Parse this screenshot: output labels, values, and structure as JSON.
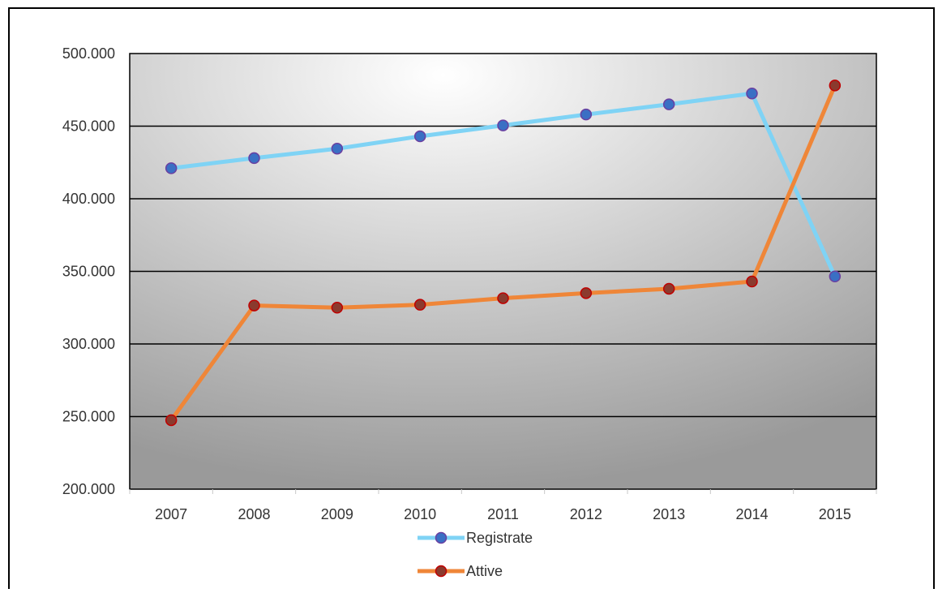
{
  "chart_data": {
    "type": "line",
    "categories": [
      "2007",
      "2008",
      "2009",
      "2010",
      "2011",
      "2012",
      "2013",
      "2014",
      "2015"
    ],
    "ylim": [
      200000,
      500000
    ],
    "y_ticks": [
      200000,
      250000,
      300000,
      350000,
      400000,
      450000,
      500000
    ],
    "y_tick_labels": [
      "200.000",
      "250.000",
      "300.000",
      "350.000",
      "400.000",
      "450.000",
      "500.000"
    ],
    "grid": true,
    "legend_position": "bottom",
    "series": [
      {
        "name": "Registrate",
        "values": [
          421000,
          428000,
          434500,
          443000,
          450500,
          458000,
          465000,
          472500,
          346500
        ],
        "line_color": "#7fd3f5",
        "marker_fill": "#3a6fc4",
        "marker_edge": "#6a3fa0"
      },
      {
        "name": "Attive",
        "values": [
          247500,
          326500,
          325000,
          327000,
          331500,
          335000,
          338000,
          343000,
          478000
        ],
        "line_color": "#ef8638",
        "marker_fill": "#8b3a2e",
        "marker_edge": "#c00000"
      }
    ]
  },
  "plot_background": {
    "light": "#ffffff",
    "dark": "#9a9a9a"
  }
}
